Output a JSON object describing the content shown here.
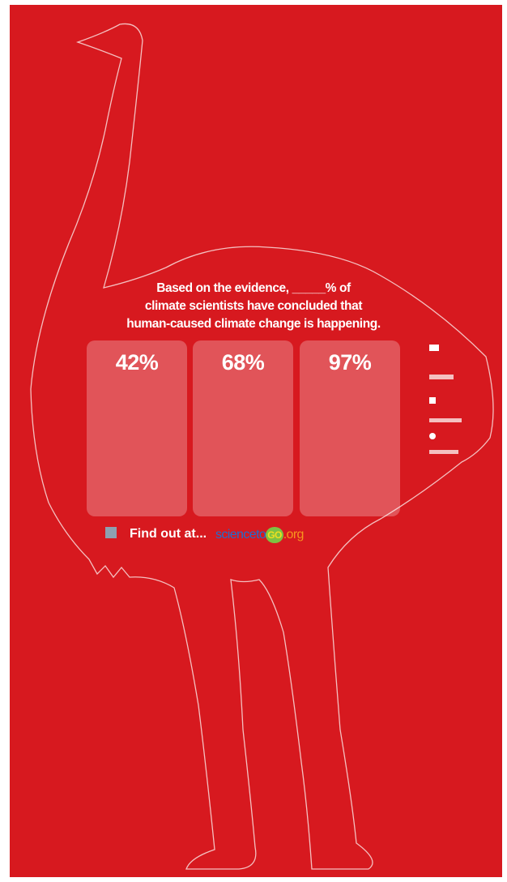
{
  "question": [
    "Based on the evidence, _____% of",
    "climate scientists have concluded that",
    "human-caused climate change is happening."
  ],
  "options": [
    "42%",
    "68%",
    "97%"
  ],
  "cta": "Find out at...",
  "brand": {
    "science": "science",
    "to": "to",
    "go": "GO",
    "org": ".org"
  }
}
